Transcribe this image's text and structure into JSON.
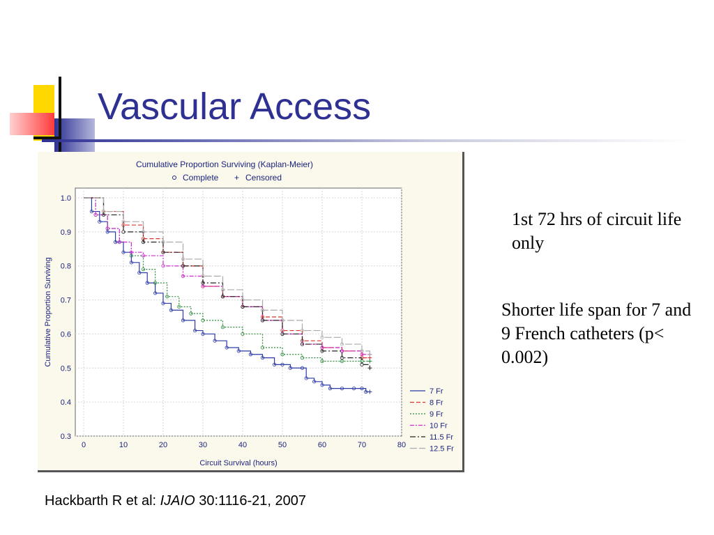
{
  "slide": {
    "title": "Vascular Access",
    "note1": "1st 72 hrs of circuit life only",
    "note2": "Shorter life span for 7 and 9 French catheters (p< 0.002)",
    "citation": {
      "authors": "Hackbarth R et al: ",
      "journal": "IJAIO",
      "details": " 30:1116-21, 2007"
    }
  },
  "colors": {
    "title": "#2e3192",
    "deco_yellow": "#ffd800",
    "deco_red": "#ff3b3b",
    "deco_blue": "#2e3192"
  },
  "chart_data": {
    "type": "line",
    "title": "Cumulative Proportion Surviving (Kaplan-Meier)",
    "legend_markers": [
      {
        "symbol": "o",
        "label": "Complete"
      },
      {
        "symbol": "+",
        "label": "Censored"
      }
    ],
    "xlabel": "Circuit Survival (hours)",
    "ylabel": "Cumulative Proportion Surviving",
    "xlim": [
      0,
      80
    ],
    "ylim": [
      0.3,
      1.0
    ],
    "x_ticks": [
      "0",
      "10",
      "20",
      "30",
      "40",
      "50",
      "60",
      "70",
      "80"
    ],
    "y_ticks": [
      "1.0",
      "0.9",
      "0.8",
      "0.7",
      "0.6",
      "0.5",
      "0.4",
      "0.3"
    ],
    "grid": true,
    "legend_position": "bottom-right",
    "series": [
      {
        "name": "7 Fr",
        "color": "#2b3aa6",
        "dash": "",
        "x": [
          0,
          2,
          4,
          6,
          8,
          10,
          12,
          14,
          16,
          18,
          20,
          22,
          25,
          28,
          30,
          33,
          36,
          39,
          42,
          45,
          48,
          50,
          52,
          55,
          56,
          58,
          60,
          62,
          65,
          68,
          70,
          71,
          72
        ],
        "y": [
          1.0,
          0.96,
          0.93,
          0.9,
          0.87,
          0.84,
          0.81,
          0.78,
          0.75,
          0.72,
          0.69,
          0.67,
          0.64,
          0.61,
          0.6,
          0.58,
          0.56,
          0.55,
          0.54,
          0.53,
          0.51,
          0.51,
          0.5,
          0.5,
          0.47,
          0.46,
          0.45,
          0.44,
          0.44,
          0.44,
          0.44,
          0.43,
          0.43
        ]
      },
      {
        "name": "8 Fr",
        "color": "#d9342b",
        "dash": "6,3",
        "x": [
          0,
          5,
          10,
          15,
          20,
          25,
          30,
          35,
          40,
          45,
          50,
          55,
          60,
          65,
          70,
          72
        ],
        "y": [
          1.0,
          0.96,
          0.92,
          0.88,
          0.84,
          0.8,
          0.74,
          0.71,
          0.68,
          0.65,
          0.61,
          0.58,
          0.56,
          0.55,
          0.53,
          0.53
        ]
      },
      {
        "name": "9 Fr",
        "color": "#2a8a3a",
        "dash": "2,2",
        "x": [
          0,
          3,
          6,
          9,
          12,
          15,
          18,
          21,
          24,
          27,
          30,
          35,
          40,
          45,
          50,
          55,
          60,
          65,
          70,
          72
        ],
        "y": [
          1.0,
          0.95,
          0.91,
          0.87,
          0.83,
          0.79,
          0.75,
          0.71,
          0.68,
          0.66,
          0.64,
          0.62,
          0.6,
          0.56,
          0.54,
          0.53,
          0.52,
          0.52,
          0.52,
          0.52
        ]
      },
      {
        "name": "10 Fr",
        "color": "#d22bd2",
        "dash": "6,2,2,2",
        "x": [
          0,
          3,
          6,
          9,
          12,
          15,
          20,
          25,
          30,
          35,
          40,
          45,
          50,
          55,
          60,
          65,
          70,
          72
        ],
        "y": [
          1.0,
          0.95,
          0.91,
          0.87,
          0.84,
          0.83,
          0.8,
          0.77,
          0.74,
          0.71,
          0.68,
          0.64,
          0.6,
          0.57,
          0.56,
          0.55,
          0.54,
          0.54
        ]
      },
      {
        "name": "11.5 Fr",
        "color": "#222222",
        "dash": "8,3,2,3",
        "x": [
          0,
          5,
          10,
          15,
          20,
          25,
          30,
          35,
          40,
          45,
          50,
          55,
          60,
          65,
          70,
          72
        ],
        "y": [
          1.0,
          0.95,
          0.9,
          0.87,
          0.84,
          0.8,
          0.75,
          0.71,
          0.68,
          0.64,
          0.6,
          0.57,
          0.55,
          0.53,
          0.51,
          0.5
        ]
      },
      {
        "name": "12.5 Fr",
        "color": "#aaaaaa",
        "dash": "10,3",
        "x": [
          0,
          5,
          10,
          15,
          20,
          25,
          30,
          35,
          40,
          45,
          50,
          55,
          60,
          65,
          70,
          72
        ],
        "y": [
          1.0,
          0.96,
          0.93,
          0.9,
          0.87,
          0.82,
          0.77,
          0.73,
          0.7,
          0.67,
          0.64,
          0.61,
          0.59,
          0.57,
          0.55,
          0.54
        ]
      }
    ]
  }
}
